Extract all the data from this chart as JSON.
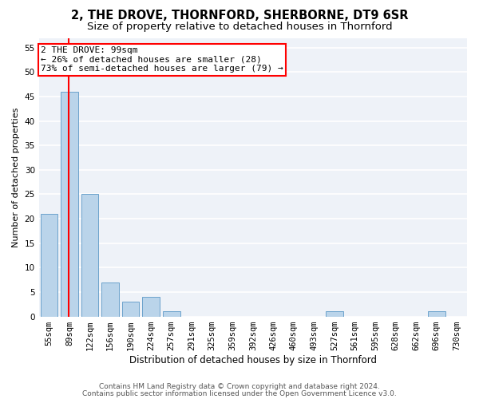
{
  "title1": "2, THE DROVE, THORNFORD, SHERBORNE, DT9 6SR",
  "title2": "Size of property relative to detached houses in Thornford",
  "xlabel": "Distribution of detached houses by size in Thornford",
  "ylabel": "Number of detached properties",
  "categories": [
    "55sqm",
    "89sqm",
    "122sqm",
    "156sqm",
    "190sqm",
    "224sqm",
    "257sqm",
    "291sqm",
    "325sqm",
    "359sqm",
    "392sqm",
    "426sqm",
    "460sqm",
    "493sqm",
    "527sqm",
    "561sqm",
    "595sqm",
    "628sqm",
    "662sqm",
    "696sqm",
    "730sqm"
  ],
  "values": [
    21,
    46,
    25,
    7,
    3,
    4,
    1,
    0,
    0,
    0,
    0,
    0,
    0,
    0,
    1,
    0,
    0,
    0,
    0,
    1,
    0
  ],
  "bar_color": "#bad4ea",
  "bar_edge_color": "#6ca3cc",
  "red_line_x": 0.95,
  "annotation_line1": "2 THE DROVE: 99sqm",
  "annotation_line2": "← 26% of detached houses are smaller (28)",
  "annotation_line3": "73% of semi-detached houses are larger (79) →",
  "annotation_box_color": "white",
  "annotation_box_edge": "red",
  "ylim": [
    0,
    57
  ],
  "yticks": [
    0,
    5,
    10,
    15,
    20,
    25,
    30,
    35,
    40,
    45,
    50,
    55
  ],
  "footer1": "Contains HM Land Registry data © Crown copyright and database right 2024.",
  "footer2": "Contains public sector information licensed under the Open Government Licence v3.0.",
  "background_color": "#eef2f8",
  "grid_color": "white",
  "title1_fontsize": 10.5,
  "title2_fontsize": 9.5,
  "xlabel_fontsize": 8.5,
  "ylabel_fontsize": 8,
  "tick_fontsize": 7.5,
  "annotation_fontsize": 8,
  "footer_fontsize": 6.5
}
